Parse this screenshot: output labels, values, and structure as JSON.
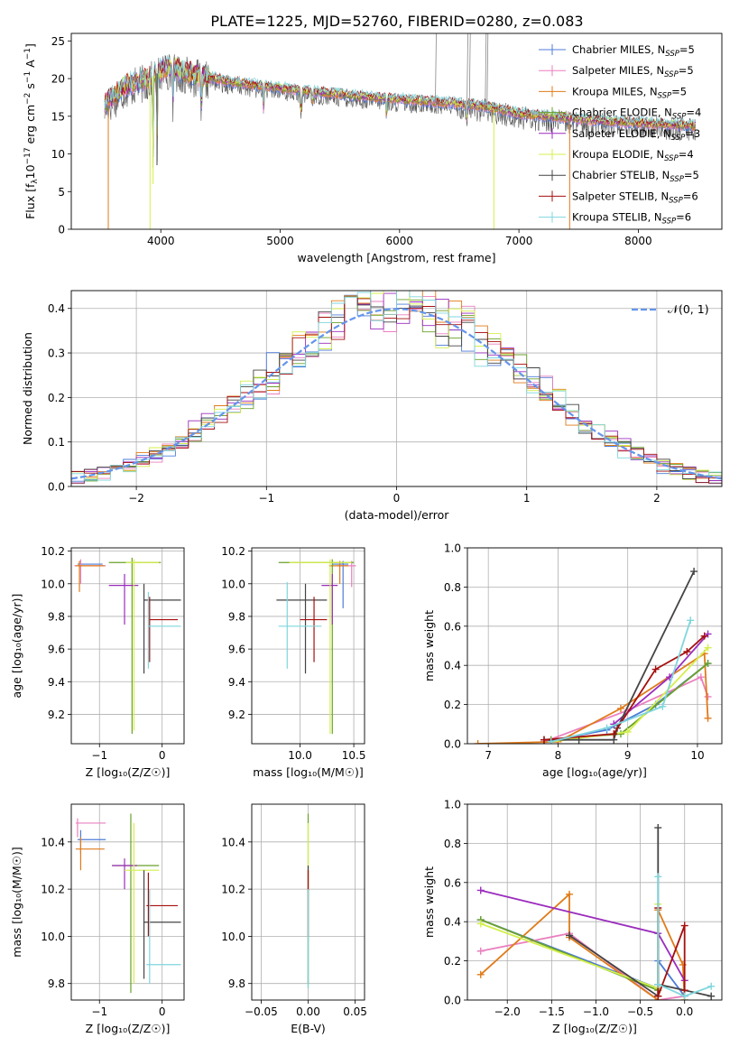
{
  "figure_title": "PLATE=1225, MJD=52760, FIBERID=0280, z=0.083",
  "colors": {
    "Chabrier MILES": "#4c7bd9",
    "Salpeter MILES": "#ea7fbf",
    "Kroupa MILES": "#e07b1a",
    "Chabrier ELODIE": "#6aa12a",
    "Salpeter ELODIE": "#9b2dbd",
    "Kroupa ELODIE": "#d4ef4d",
    "Chabrier STELIB": "#444444",
    "Salpeter STELIB": "#a50f0f",
    "Kroupa STELIB": "#7fd6dd"
  },
  "legend_spectrum": [
    {
      "base": "Chabrier MILES, N",
      "sub": "SSP",
      "suffix": "=5"
    },
    {
      "base": "Salpeter MILES, N",
      "sub": "SSP",
      "suffix": "=5"
    },
    {
      "base": "Kroupa MILES, N",
      "sub": "SSP",
      "suffix": "=5"
    },
    {
      "base": "Chabrier ELODIE, N",
      "sub": "SSP",
      "suffix": "=4"
    },
    {
      "base": "Salpeter ELODIE, N",
      "sub": "SSP",
      "suffix": "=3"
    },
    {
      "base": "Kroupa ELODIE, N",
      "sub": "SSP",
      "suffix": "=4"
    },
    {
      "base": "Chabrier STELIB, N",
      "sub": "SSP",
      "suffix": "=5"
    },
    {
      "base": "Salpeter STELIB, N",
      "sub": "SSP",
      "suffix": "=6"
    },
    {
      "base": "Kroupa STELIB, N",
      "sub": "SSP",
      "suffix": "=6"
    }
  ],
  "chart_data": [
    {
      "type": "line",
      "id": "spectrum",
      "xlabel": "wavelength [Angstrom, rest frame]",
      "ylabel_parts": {
        "a": "Flux [f",
        "b": "λ",
        "c": "10",
        "d": "−17",
        "e": " erg cm",
        "f": "−2",
        "g": " s",
        "h": "−1",
        "i": " A",
        "j": "−1",
        "k": "]"
      },
      "xlim": [
        3250,
        8700
      ],
      "ylim": [
        0,
        26
      ],
      "xticks": [
        4000,
        5000,
        6000,
        7000,
        8000
      ],
      "yticks": [
        0,
        5,
        10,
        15,
        20,
        25
      ],
      "continuum": [
        [
          3530,
          16.5
        ],
        [
          3700,
          19
        ],
        [
          3900,
          20
        ],
        [
          4050,
          21.5
        ],
        [
          4300,
          20.5
        ],
        [
          4600,
          19.5
        ],
        [
          5000,
          18.7
        ],
        [
          5300,
          18.2
        ],
        [
          5700,
          17.6
        ],
        [
          6000,
          17.2
        ],
        [
          6400,
          16.8
        ],
        [
          6700,
          16.3
        ],
        [
          7000,
          15.3
        ],
        [
          7400,
          14.7
        ],
        [
          7800,
          14.2
        ],
        [
          8200,
          13.9
        ],
        [
          8480,
          13.7
        ]
      ],
      "lines_down": [
        {
          "x": 3560,
          "y": 0,
          "series": "Kroupa MILES"
        },
        {
          "x": 3910,
          "y": 0,
          "series": "Kroupa ELODIE"
        },
        {
          "x": 3935,
          "y": 6,
          "series": "Kroupa ELODIE"
        },
        {
          "x": 3968,
          "y": 8.5,
          "series": "Chabrier STELIB"
        },
        {
          "x": 6790,
          "y": 0,
          "series": "Kroupa ELODIE"
        },
        {
          "x": 7425,
          "y": 0,
          "series": "Kroupa MILES"
        }
      ],
      "lines_up": [
        6565,
        6585,
        6718,
        6733,
        6300
      ]
    },
    {
      "type": "histogram",
      "id": "residuals",
      "xlabel": "(data-model)/error",
      "ylabel": "Normed distribution",
      "xlim": [
        -2.5,
        2.5
      ],
      "ylim": [
        0,
        0.44
      ],
      "xticks": [
        -2,
        -1,
        0,
        1,
        2
      ],
      "yticks": [
        0.0,
        0.1,
        0.2,
        0.3,
        0.4
      ],
      "bin_width": 0.1,
      "reference_label": "𝒩(0, 1)",
      "reference": {
        "mean": 0,
        "sigma": 1
      }
    },
    {
      "type": "scatter",
      "id": "age_vs_Z",
      "xlabel": "Z [log₁₀(Z/Z☉)]",
      "ylabel": "age  [log₁₀(age/yr)]",
      "xlim": [
        -1.45,
        0.35
      ],
      "ylim": [
        9.02,
        10.22
      ],
      "xticks": [
        -1,
        0
      ],
      "yticks": [
        9.2,
        9.4,
        9.6,
        9.8,
        10.0,
        10.2
      ],
      "points": [
        {
          "series": "Chabrier MILES",
          "x": -1.3,
          "y": 10.12,
          "xe": [
            -1.35,
            -0.95
          ],
          "ye": [
            10.1,
            10.14
          ]
        },
        {
          "series": "Salpeter MILES",
          "x": -1.3,
          "y": 10.11,
          "xe": [
            -1.4,
            -0.9
          ],
          "ye": [
            10.0,
            10.15
          ]
        },
        {
          "series": "Kroupa MILES",
          "x": -1.32,
          "y": 10.11,
          "xe": [
            -1.38,
            -0.92
          ],
          "ye": [
            9.95,
            10.14
          ]
        },
        {
          "series": "Chabrier ELODIE",
          "x": -0.48,
          "y": 10.13,
          "xe": [
            -0.85,
            -0.02
          ],
          "ye": [
            9.08,
            10.16
          ]
        },
        {
          "series": "Salpeter ELODIE",
          "x": -0.6,
          "y": 9.99,
          "xe": [
            -0.85,
            -0.38
          ],
          "ye": [
            9.75,
            10.06
          ]
        },
        {
          "series": "Kroupa ELODIE",
          "x": -0.45,
          "y": 10.13,
          "xe": [
            -0.58,
            -0.05
          ],
          "ye": [
            9.1,
            10.15
          ]
        },
        {
          "series": "Chabrier STELIB",
          "x": -0.29,
          "y": 9.9,
          "xe": [
            -0.29,
            0.3
          ],
          "ye": [
            9.45,
            10.0
          ]
        },
        {
          "series": "Salpeter STELIB",
          "x": -0.2,
          "y": 9.78,
          "xe": [
            -0.2,
            0.25
          ],
          "ye": [
            9.52,
            9.92
          ]
        },
        {
          "series": "Kroupa STELIB",
          "x": -0.22,
          "y": 9.74,
          "xe": [
            -0.22,
            0.3
          ],
          "ye": [
            9.48,
            9.95
          ]
        }
      ]
    },
    {
      "type": "scatter",
      "id": "age_vs_mass",
      "xlabel": "mass [log₁₀(M/M☉)]",
      "ylabel": "",
      "xlim": [
        9.55,
        10.6
      ],
      "ylim": [
        9.02,
        10.22
      ],
      "xticks": [
        10.0,
        10.5
      ],
      "yticks": [
        9.2,
        9.4,
        9.6,
        9.8,
        10.0,
        10.2
      ],
      "points": [
        {
          "series": "Chabrier MILES",
          "x": 10.4,
          "y": 10.12,
          "xe": [
            10.3,
            10.45
          ],
          "ye": [
            9.85,
            10.14
          ]
        },
        {
          "series": "Salpeter MILES",
          "x": 10.48,
          "y": 10.11,
          "xe": [
            10.35,
            10.52
          ],
          "ye": [
            9.98,
            10.14
          ]
        },
        {
          "series": "Kroupa MILES",
          "x": 10.37,
          "y": 10.11,
          "xe": [
            10.27,
            10.45
          ],
          "ye": [
            10.0,
            10.14
          ]
        },
        {
          "series": "Chabrier ELODIE",
          "x": 10.3,
          "y": 10.13,
          "xe": [
            9.8,
            10.5
          ],
          "ye": [
            9.08,
            10.15
          ]
        },
        {
          "series": "Salpeter ELODIE",
          "x": 10.3,
          "y": 9.99,
          "xe": [
            10.2,
            10.35
          ],
          "ye": [
            9.75,
            10.06
          ]
        },
        {
          "series": "Kroupa ELODIE",
          "x": 10.28,
          "y": 10.13,
          "xe": [
            9.9,
            10.48
          ],
          "ye": [
            9.08,
            10.15
          ]
        },
        {
          "series": "Chabrier STELIB",
          "x": 10.05,
          "y": 9.9,
          "xe": [
            9.78,
            10.25
          ],
          "ye": [
            9.45,
            10.0
          ]
        },
        {
          "series": "Salpeter STELIB",
          "x": 10.13,
          "y": 9.78,
          "xe": [
            10.0,
            10.25
          ],
          "ye": [
            9.52,
            9.92
          ]
        },
        {
          "series": "Kroupa STELIB",
          "x": 9.88,
          "y": 9.74,
          "xe": [
            9.8,
            10.2
          ],
          "ye": [
            9.48,
            10.01
          ]
        }
      ]
    },
    {
      "type": "line",
      "id": "weight_vs_age",
      "xlabel": "age  [log₁₀(age/yr)]",
      "ylabel": "mass weight",
      "xlim": [
        6.7,
        10.35
      ],
      "ylim": [
        0,
        1
      ],
      "xticks": [
        7,
        8,
        9,
        10
      ],
      "yticks": [
        0.0,
        0.2,
        0.4,
        0.6,
        0.8,
        1.0
      ],
      "series": [
        {
          "name": "Chabrier MILES",
          "x": [
            7.8,
            8.7,
            9.4,
            10.15
          ],
          "y": [
            0.01,
            0.07,
            0.2,
            0.41
          ]
        },
        {
          "name": "Salpeter MILES",
          "x": [
            7.8,
            9.0,
            10.05,
            10.15
          ],
          "y": [
            0.01,
            0.17,
            0.34,
            0.24
          ]
        },
        {
          "name": "Kroupa MILES",
          "x": [
            6.85,
            8.0,
            8.9,
            10.1,
            10.15
          ],
          "y": [
            0.0,
            0.01,
            0.18,
            0.46,
            0.13
          ]
        },
        {
          "name": "Chabrier ELODIE",
          "x": [
            7.9,
            8.9,
            10.15
          ],
          "y": [
            0.02,
            0.05,
            0.41
          ]
        },
        {
          "name": "Salpeter ELODIE",
          "x": [
            8.8,
            9.6,
            10.15
          ],
          "y": [
            0.1,
            0.34,
            0.56
          ]
        },
        {
          "name": "Kroupa ELODIE",
          "x": [
            7.9,
            9.0,
            10.15
          ],
          "y": [
            0.01,
            0.06,
            0.49
          ]
        },
        {
          "name": "Chabrier STELIB",
          "x": [
            7.8,
            8.3,
            8.8,
            8.85,
            9.95
          ],
          "y": [
            0.02,
            0.02,
            0.02,
            0.08,
            0.88
          ]
        },
        {
          "name": "Salpeter STELIB",
          "x": [
            7.8,
            8.8,
            9.4,
            9.85,
            10.1
          ],
          "y": [
            0.02,
            0.05,
            0.38,
            0.47,
            0.55
          ]
        },
        {
          "name": "Kroupa STELIB",
          "x": [
            7.9,
            8.7,
            9.5,
            9.9
          ],
          "y": [
            0.01,
            0.08,
            0.19,
            0.63
          ]
        }
      ]
    },
    {
      "type": "scatter",
      "id": "mass_vs_Z",
      "xlabel": "Z [log₁₀(Z/Z☉)]",
      "ylabel": "mass [log₁₀(M/M☉)]",
      "xlim": [
        -1.45,
        0.35
      ],
      "ylim": [
        9.73,
        10.56
      ],
      "xticks": [
        -1,
        0
      ],
      "yticks": [
        9.8,
        10.0,
        10.2,
        10.4
      ],
      "points": [
        {
          "series": "Chabrier MILES",
          "x": -1.3,
          "y": 10.41,
          "xe": [
            -1.35,
            -0.9
          ],
          "ye": [
            10.35,
            10.45
          ]
        },
        {
          "series": "Salpeter MILES",
          "x": -1.35,
          "y": 10.48,
          "xe": [
            -1.38,
            -0.9
          ],
          "ye": [
            10.42,
            10.5
          ]
        },
        {
          "series": "Kroupa MILES",
          "x": -1.3,
          "y": 10.37,
          "xe": [
            -1.38,
            -0.92
          ],
          "ye": [
            10.28,
            10.42
          ]
        },
        {
          "series": "Chabrier ELODIE",
          "x": -0.5,
          "y": 10.3,
          "xe": [
            -0.8,
            -0.05
          ],
          "ye": [
            9.76,
            10.52
          ]
        },
        {
          "series": "Salpeter ELODIE",
          "x": -0.6,
          "y": 10.3,
          "xe": [
            -0.8,
            -0.4
          ],
          "ye": [
            10.2,
            10.33
          ]
        },
        {
          "series": "Kroupa ELODIE",
          "x": -0.45,
          "y": 10.28,
          "xe": [
            -0.6,
            -0.05
          ],
          "ye": [
            9.8,
            10.48
          ]
        },
        {
          "series": "Chabrier STELIB",
          "x": -0.29,
          "y": 10.06,
          "xe": [
            -0.3,
            0.3
          ],
          "ye": [
            9.82,
            10.28
          ]
        },
        {
          "series": "Salpeter STELIB",
          "x": -0.22,
          "y": 10.13,
          "xe": [
            -0.25,
            0.25
          ],
          "ye": [
            10.0,
            10.27
          ]
        },
        {
          "series": "Kroupa STELIB",
          "x": -0.2,
          "y": 9.88,
          "xe": [
            -0.25,
            0.3
          ],
          "ye": [
            9.8,
            10.2
          ]
        }
      ]
    },
    {
      "type": "scatter",
      "id": "mass_vs_EBV",
      "xlabel": "E(B-V)",
      "ylabel": "",
      "xlim": [
        -0.06,
        0.06
      ],
      "ylim": [
        9.73,
        10.56
      ],
      "xticks": [
        -0.05,
        0.0,
        0.05
      ],
      "xtick_labels": [
        "−0.05",
        "0.00",
        "0.05"
      ],
      "yticks": [
        9.8,
        10.0,
        10.2,
        10.4
      ],
      "points": [
        {
          "series": "Chabrier ELODIE",
          "x": 0,
          "y": 10.3,
          "ye": [
            9.78,
            10.52
          ]
        },
        {
          "series": "Kroupa ELODIE",
          "x": 0,
          "y": 10.28,
          "ye": [
            9.8,
            10.48
          ]
        },
        {
          "series": "Chabrier STELIB",
          "x": 0,
          "y": 10.06,
          "ye": [
            9.8,
            10.3
          ]
        },
        {
          "series": "Salpeter STELIB",
          "x": 0,
          "y": 10.13,
          "ye": [
            10.0,
            10.28
          ]
        },
        {
          "series": "Kroupa STELIB",
          "x": 0,
          "y": 9.88,
          "ye": [
            9.78,
            10.2
          ]
        }
      ]
    },
    {
      "type": "line",
      "id": "weight_vs_Z",
      "xlabel": "Z [log₁₀(Z/Z☉)]",
      "ylabel": "mass weight",
      "xlim": [
        -2.45,
        0.42
      ],
      "ylim": [
        0,
        1
      ],
      "xticks": [
        -2.0,
        -1.5,
        -1.0,
        -0.5,
        0.0
      ],
      "xtick_labels": [
        "−2.0",
        "−1.5",
        "−1.0",
        "−0.5",
        "0.0"
      ],
      "yticks": [
        0.0,
        0.2,
        0.4,
        0.6,
        0.8,
        1.0
      ],
      "series": [
        {
          "name": "Chabrier MILES",
          "x": [
            -2.3,
            -0.3,
            -0.3,
            0.0
          ],
          "y": [
            0.41,
            0.06,
            0.2,
            0.02
          ]
        },
        {
          "name": "Salpeter MILES",
          "x": [
            -2.3,
            -1.3,
            -0.3,
            0.0
          ],
          "y": [
            0.25,
            0.34,
            0.0,
            0.02
          ]
        },
        {
          "name": "Kroupa MILES",
          "x": [
            -2.3,
            -1.3,
            -1.3,
            -0.3,
            -0.3,
            -0.02,
            0.0
          ],
          "y": [
            0.13,
            0.54,
            0.32,
            0.0,
            0.46,
            0.18,
            0.0
          ]
        },
        {
          "name": "Chabrier ELODIE",
          "x": [
            -2.3,
            -0.3,
            -0.3
          ],
          "y": [
            0.41,
            0.05,
            0.02
          ]
        },
        {
          "name": "Salpeter ELODIE",
          "x": [
            -2.3,
            -0.3,
            0.0
          ],
          "y": [
            0.56,
            0.34,
            0.1
          ]
        },
        {
          "name": "Kroupa ELODIE",
          "x": [
            -2.3,
            -0.3,
            -0.3
          ],
          "y": [
            0.39,
            0.06,
            0.49
          ]
        },
        {
          "name": "Chabrier STELIB",
          "x": [
            -1.3,
            -0.3,
            -0.3,
            -0.3,
            0.3
          ],
          "y": [
            0.33,
            0.02,
            0.88,
            0.08,
            0.02
          ]
        },
        {
          "name": "Salpeter STELIB",
          "x": [
            -0.3,
            -0.3,
            0.0,
            0.0
          ],
          "y": [
            0.47,
            0.02,
            0.38,
            0.05
          ]
        },
        {
          "name": "Kroupa STELIB",
          "x": [
            -0.3,
            -0.3,
            0.0,
            0.3
          ],
          "y": [
            0.63,
            0.08,
            0.02,
            0.07
          ]
        }
      ]
    }
  ]
}
